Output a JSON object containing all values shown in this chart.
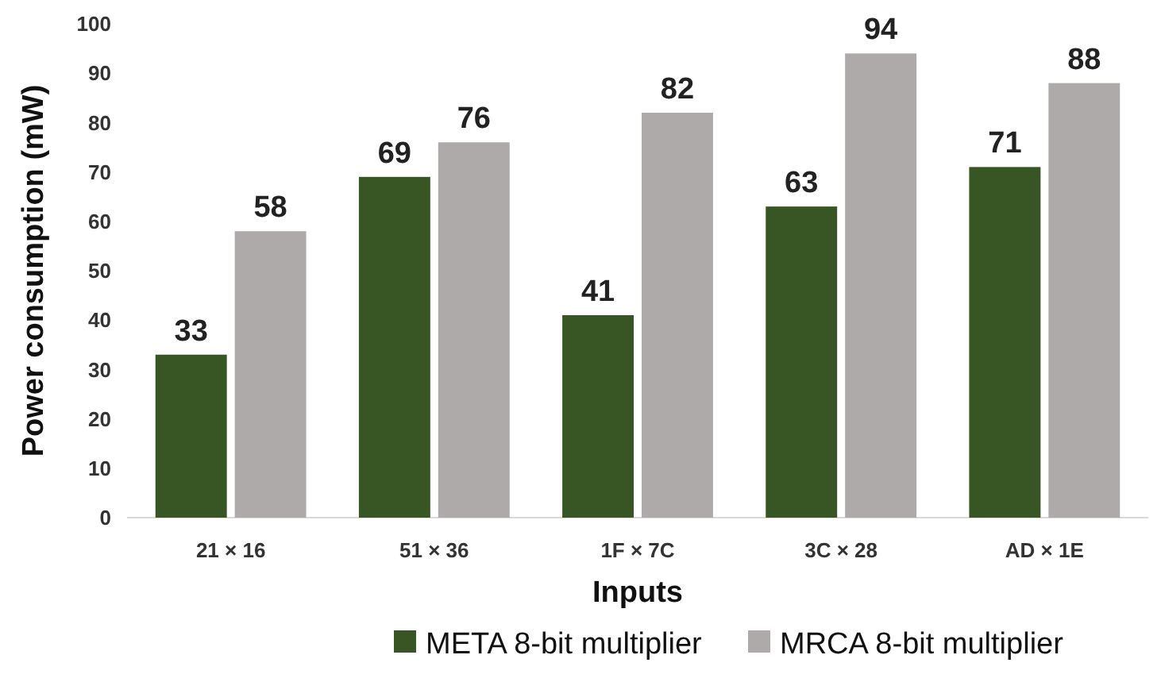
{
  "chart_data": {
    "type": "bar",
    "xlabel": "Inputs",
    "ylabel": "Power consumption (mW)",
    "categories": [
      "21 × 16",
      "51 × 36",
      "1F × 7C",
      "3C × 28",
      "AD × 1E"
    ],
    "series": [
      {
        "name": "META 8-bit multiplier",
        "color": "#375623",
        "values": [
          33,
          69,
          41,
          63,
          71
        ]
      },
      {
        "name": "MRCA 8-bit multiplier",
        "color": "#aeaaaa",
        "values": [
          58,
          76,
          82,
          94,
          88
        ]
      }
    ],
    "ylim": [
      0,
      100
    ],
    "yticks": [
      0,
      10,
      20,
      30,
      40,
      50,
      60,
      70,
      80,
      90,
      100
    ],
    "data_labels": true,
    "legend": "bottom",
    "grid": false
  }
}
